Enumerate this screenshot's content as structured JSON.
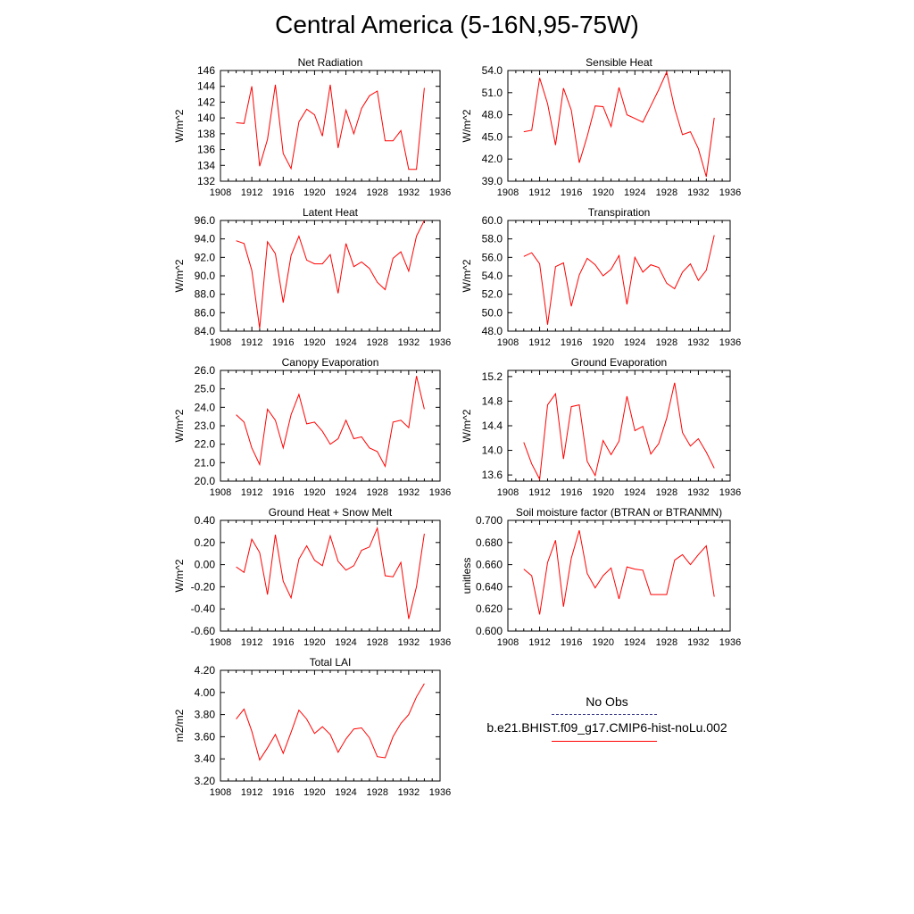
{
  "title": "Central America (5-16N,95-75W)",
  "legend": {
    "entries": [
      {
        "label": "No Obs",
        "color": "#3c3c8c",
        "dash": true
      },
      {
        "label": "b.e21.BHIST.f09_g17.CMIP6-hist-noLu.002",
        "color": "#ff0000",
        "dash": false
      }
    ]
  },
  "chart_data": [
    {
      "type": "line",
      "title": "Net Radiation",
      "ylabel": "W/m^2",
      "xlim": [
        1908,
        1936
      ],
      "xticks": [
        1908,
        1912,
        1916,
        1920,
        1924,
        1928,
        1932,
        1936
      ],
      "ylim": [
        132,
        146
      ],
      "yticks": [
        "132",
        "134",
        "136",
        "138",
        "140",
        "142",
        "144",
        "146"
      ],
      "color": "#ff0000",
      "x": [
        1910,
        1911,
        1912,
        1913,
        1914,
        1915,
        1916,
        1917,
        1918,
        1919,
        1920,
        1921,
        1922,
        1923,
        1924,
        1925,
        1926,
        1927,
        1928,
        1929,
        1930,
        1931,
        1932,
        1933,
        1934
      ],
      "y": [
        139.4,
        139.3,
        144.0,
        133.9,
        137.3,
        144.2,
        135.5,
        133.6,
        139.5,
        141.1,
        140.4,
        137.7,
        144.2,
        136.2,
        141.0,
        138.0,
        141.2,
        142.8,
        143.4,
        137.1,
        137.1,
        138.4,
        133.5,
        133.5,
        143.8
      ]
    },
    {
      "type": "line",
      "title": "Sensible Heat",
      "ylabel": "W/m^2",
      "xlim": [
        1908,
        1936
      ],
      "xticks": [
        1908,
        1912,
        1916,
        1920,
        1924,
        1928,
        1932,
        1936
      ],
      "ylim": [
        39.0,
        54.0
      ],
      "yticks": [
        "39.0",
        "42.0",
        "45.0",
        "48.0",
        "51.0",
        "54.0"
      ],
      "color": "#ff0000",
      "x": [
        1910,
        1911,
        1912,
        1913,
        1914,
        1915,
        1916,
        1917,
        1918,
        1919,
        1920,
        1921,
        1922,
        1923,
        1924,
        1925,
        1926,
        1927,
        1928,
        1929,
        1930,
        1931,
        1932,
        1933,
        1934
      ],
      "y": [
        45.7,
        45.9,
        53.0,
        49.5,
        43.9,
        51.6,
        48.6,
        41.5,
        45.1,
        49.2,
        49.1,
        46.4,
        51.7,
        48.0,
        47.5,
        47.0,
        49.2,
        51.4,
        53.8,
        48.9,
        45.3,
        45.7,
        43.4,
        39.6,
        47.6
      ]
    },
    {
      "type": "line",
      "title": "Latent Heat",
      "ylabel": "W/m^2",
      "xlim": [
        1908,
        1936
      ],
      "xticks": [
        1908,
        1912,
        1916,
        1920,
        1924,
        1928,
        1932,
        1936
      ],
      "ylim": [
        84.0,
        96.0
      ],
      "yticks": [
        "84.0",
        "86.0",
        "88.0",
        "90.0",
        "92.0",
        "94.0",
        "96.0"
      ],
      "color": "#ff0000",
      "x": [
        1910,
        1911,
        1912,
        1913,
        1914,
        1915,
        1916,
        1917,
        1918,
        1919,
        1920,
        1921,
        1922,
        1923,
        1924,
        1925,
        1926,
        1927,
        1928,
        1929,
        1930,
        1931,
        1932,
        1933,
        1934
      ],
      "y": [
        93.8,
        93.5,
        90.6,
        84.3,
        93.7,
        92.4,
        87.1,
        92.2,
        94.3,
        91.7,
        91.3,
        91.3,
        92.3,
        88.1,
        93.5,
        91.0,
        91.5,
        90.8,
        89.3,
        88.5,
        91.9,
        92.6,
        90.5,
        94.3,
        96.0
      ]
    },
    {
      "type": "line",
      "title": "Transpiration",
      "ylabel": "W/m^2",
      "xlim": [
        1908,
        1936
      ],
      "xticks": [
        1908,
        1912,
        1916,
        1920,
        1924,
        1928,
        1932,
        1936
      ],
      "ylim": [
        48.0,
        60.0
      ],
      "yticks": [
        "48.0",
        "50.0",
        "52.0",
        "54.0",
        "56.0",
        "58.0",
        "60.0"
      ],
      "color": "#ff0000",
      "x": [
        1910,
        1911,
        1912,
        1913,
        1914,
        1915,
        1916,
        1917,
        1918,
        1919,
        1920,
        1921,
        1922,
        1923,
        1924,
        1925,
        1926,
        1927,
        1928,
        1929,
        1930,
        1931,
        1932,
        1933,
        1934
      ],
      "y": [
        56.1,
        56.5,
        55.3,
        48.7,
        55.0,
        55.4,
        50.7,
        54.1,
        55.9,
        55.2,
        54.0,
        54.7,
        56.2,
        50.9,
        56.0,
        54.4,
        55.2,
        54.9,
        53.2,
        52.6,
        54.4,
        55.3,
        53.5,
        54.6,
        58.4
      ]
    },
    {
      "type": "line",
      "title": "Canopy Evaporation",
      "ylabel": "W/m^2",
      "xlim": [
        1908,
        1936
      ],
      "xticks": [
        1908,
        1912,
        1916,
        1920,
        1924,
        1928,
        1932,
        1936
      ],
      "ylim": [
        20.0,
        26.0
      ],
      "yticks": [
        "20.0",
        "21.0",
        "22.0",
        "23.0",
        "24.0",
        "25.0",
        "26.0"
      ],
      "color": "#ff0000",
      "x": [
        1910,
        1911,
        1912,
        1913,
        1914,
        1915,
        1916,
        1917,
        1918,
        1919,
        1920,
        1921,
        1922,
        1923,
        1924,
        1925,
        1926,
        1927,
        1928,
        1929,
        1930,
        1931,
        1932,
        1933,
        1934
      ],
      "y": [
        23.6,
        23.2,
        21.8,
        20.9,
        23.9,
        23.3,
        21.8,
        23.6,
        24.7,
        23.1,
        23.2,
        22.7,
        22.0,
        22.3,
        23.3,
        22.3,
        22.4,
        21.8,
        21.6,
        20.8,
        23.2,
        23.3,
        22.9,
        25.7,
        23.9
      ]
    },
    {
      "type": "line",
      "title": "Ground Evaporation",
      "ylabel": "W/m^2",
      "xlim": [
        1908,
        1936
      ],
      "xticks": [
        1908,
        1912,
        1916,
        1920,
        1924,
        1928,
        1932,
        1936
      ],
      "ylim": [
        13.5,
        15.3
      ],
      "yticks": [
        "13.6",
        "14.0",
        "14.4",
        "14.8",
        "15.2"
      ],
      "color": "#ff0000",
      "x": [
        1910,
        1911,
        1912,
        1913,
        1914,
        1915,
        1916,
        1917,
        1918,
        1919,
        1920,
        1921,
        1922,
        1923,
        1924,
        1925,
        1926,
        1927,
        1928,
        1929,
        1930,
        1931,
        1932,
        1933,
        1934
      ],
      "y": [
        14.13,
        13.78,
        13.53,
        14.74,
        14.92,
        13.86,
        14.71,
        14.74,
        13.82,
        13.59,
        14.16,
        13.93,
        14.15,
        14.88,
        14.32,
        14.39,
        13.94,
        14.11,
        14.52,
        15.1,
        14.29,
        14.07,
        14.19,
        13.97,
        13.71
      ]
    },
    {
      "type": "line",
      "title": "Ground Heat + Snow Melt",
      "ylabel": "W/m^2",
      "xlim": [
        1908,
        1936
      ],
      "xticks": [
        1908,
        1912,
        1916,
        1920,
        1924,
        1928,
        1932,
        1936
      ],
      "ylim": [
        -0.6,
        0.4
      ],
      "yticks": [
        "-0.60",
        "-0.40",
        "-0.20",
        "0.00",
        "0.20",
        "0.40"
      ],
      "color": "#ff0000",
      "x": [
        1910,
        1911,
        1912,
        1913,
        1914,
        1915,
        1916,
        1917,
        1918,
        1919,
        1920,
        1921,
        1922,
        1923,
        1924,
        1925,
        1926,
        1927,
        1928,
        1929,
        1930,
        1931,
        1932,
        1933,
        1934
      ],
      "y": [
        -0.02,
        -0.07,
        0.23,
        0.11,
        -0.27,
        0.27,
        -0.15,
        -0.3,
        0.05,
        0.17,
        0.04,
        -0.01,
        0.26,
        0.03,
        -0.05,
        -0.01,
        0.13,
        0.16,
        0.33,
        -0.1,
        -0.11,
        0.02,
        -0.49,
        -0.2,
        0.28
      ]
    },
    {
      "type": "line",
      "title": "Soil moisture factor (BTRAN or BTRANMN)",
      "ylabel": "unitless",
      "xlim": [
        1908,
        1936
      ],
      "xticks": [
        1908,
        1912,
        1916,
        1920,
        1924,
        1928,
        1932,
        1936
      ],
      "ylim": [
        0.6,
        0.7
      ],
      "yticks": [
        "0.600",
        "0.620",
        "0.640",
        "0.660",
        "0.680",
        "0.700"
      ],
      "color": "#ff0000",
      "x": [
        1910,
        1911,
        1912,
        1913,
        1914,
        1915,
        1916,
        1917,
        1918,
        1919,
        1920,
        1921,
        1922,
        1923,
        1924,
        1925,
        1926,
        1927,
        1928,
        1929,
        1930,
        1931,
        1932,
        1933,
        1934
      ],
      "y": [
        0.656,
        0.65,
        0.615,
        0.662,
        0.682,
        0.622,
        0.666,
        0.691,
        0.652,
        0.639,
        0.65,
        0.657,
        0.629,
        0.658,
        0.656,
        0.655,
        0.633,
        0.633,
        0.633,
        0.664,
        0.669,
        0.66,
        0.669,
        0.677,
        0.631
      ]
    },
    {
      "type": "line",
      "title": "Total LAI",
      "ylabel": "m2/m2",
      "xlim": [
        1908,
        1936
      ],
      "xticks": [
        1908,
        1912,
        1916,
        1920,
        1924,
        1928,
        1932,
        1936
      ],
      "ylim": [
        3.2,
        4.2
      ],
      "yticks": [
        "3.20",
        "3.40",
        "3.60",
        "3.80",
        "4.00",
        "4.20"
      ],
      "color": "#ff0000",
      "x": [
        1910,
        1911,
        1912,
        1913,
        1914,
        1915,
        1916,
        1917,
        1918,
        1919,
        1920,
        1921,
        1922,
        1923,
        1924,
        1925,
        1926,
        1927,
        1928,
        1929,
        1930,
        1931,
        1932,
        1933,
        1934
      ],
      "y": [
        3.76,
        3.85,
        3.65,
        3.39,
        3.5,
        3.62,
        3.45,
        3.64,
        3.84,
        3.76,
        3.63,
        3.69,
        3.62,
        3.46,
        3.58,
        3.67,
        3.68,
        3.59,
        3.42,
        3.41,
        3.6,
        3.72,
        3.8,
        3.96,
        4.08
      ]
    }
  ]
}
